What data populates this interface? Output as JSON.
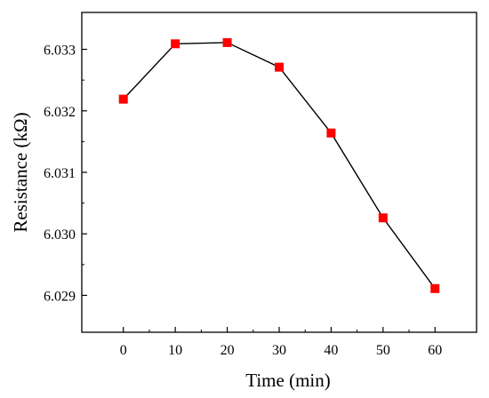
{
  "chart_data": {
    "type": "line",
    "xlabel": "Time (min)",
    "ylabel": "Resistance (kΩ)",
    "xlim": [
      -8,
      68
    ],
    "ylim": [
      6.0284,
      6.0336
    ],
    "x_ticks": [
      "0",
      "10",
      "20",
      "30",
      "40",
      "50",
      "60"
    ],
    "y_ticks": [
      "6.029",
      "6.030",
      "6.031",
      "6.032",
      "6.033"
    ],
    "grid": false,
    "series": [
      {
        "x": [
          0,
          10,
          20,
          30,
          40,
          50,
          60
        ],
        "y": [
          6.03219,
          6.03309,
          6.03311,
          6.03271,
          6.03164,
          6.03026,
          6.02911
        ]
      }
    ]
  },
  "colors": {
    "marker": "#ff0000",
    "line": "#000000",
    "axis": "#000000"
  }
}
